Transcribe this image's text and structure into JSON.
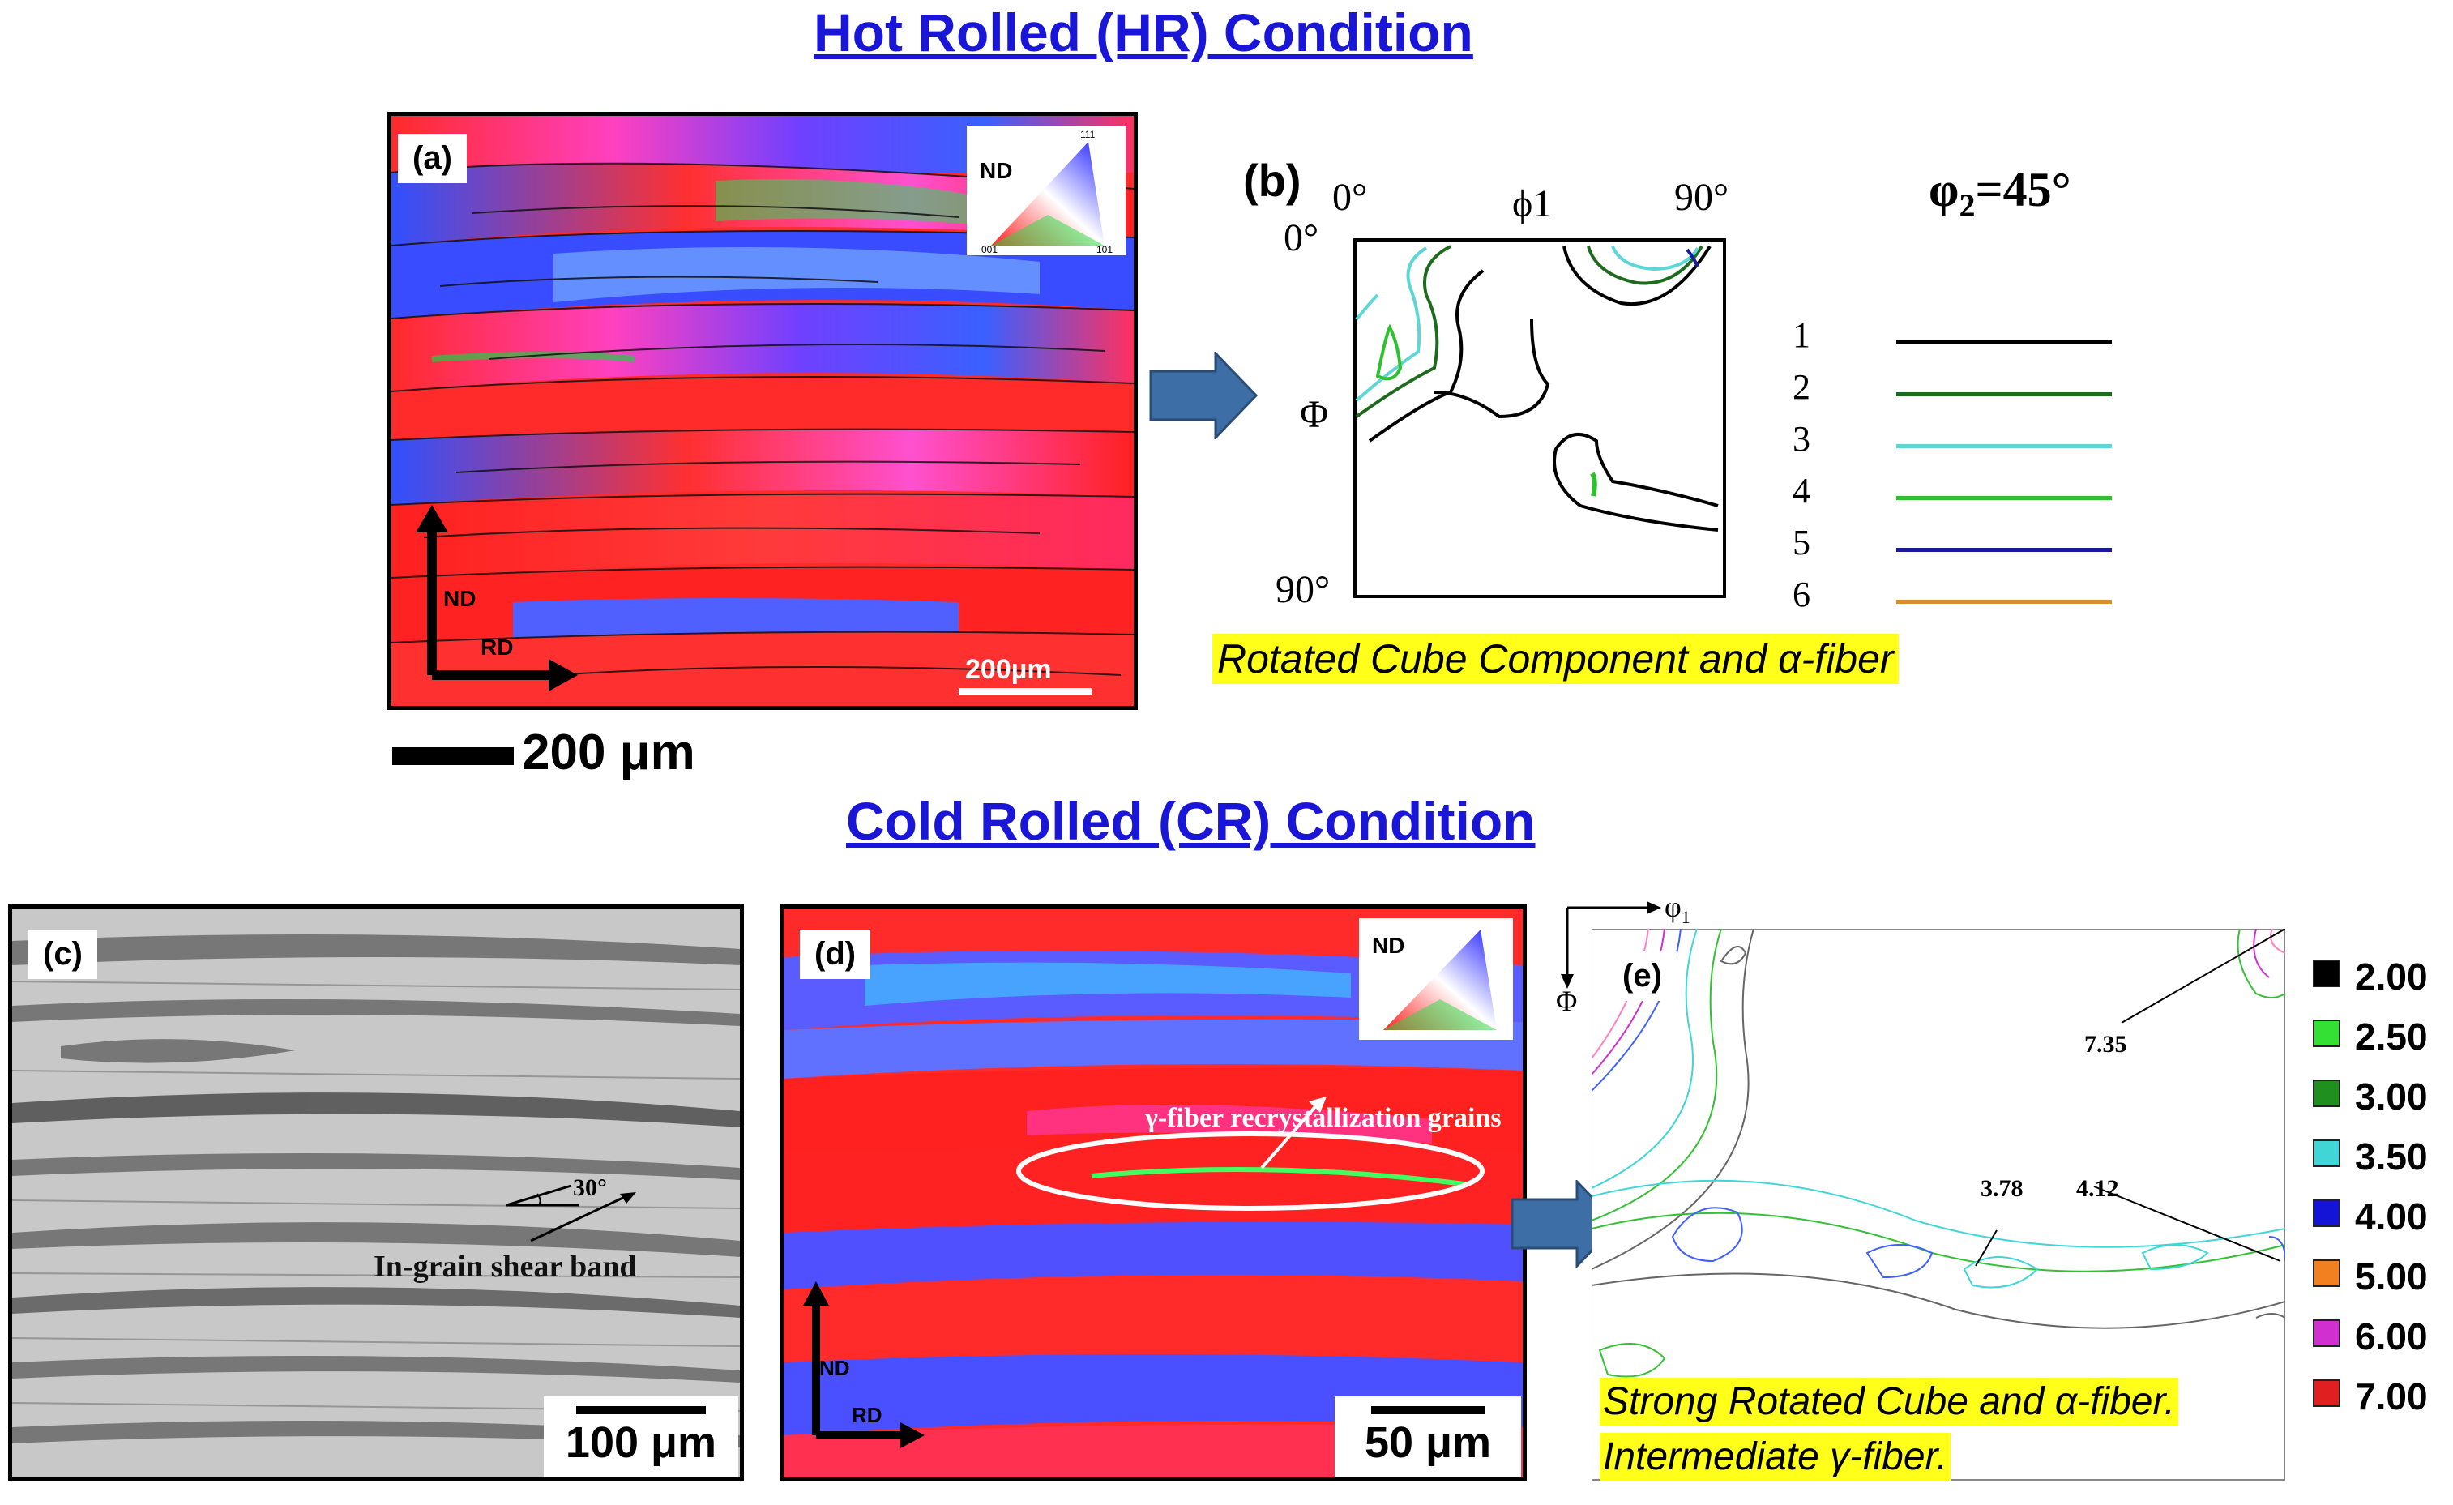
{
  "hr_title": "Hot Rolled (HR) Condition",
  "cr_title": "Cold Rolled (CR) Condition",
  "panel_a": {
    "label": "(a)",
    "ipf_label": "ND",
    "ipf_corners": [
      "111",
      "001",
      "101"
    ],
    "axis_nd": "ND",
    "axis_rd": "RD",
    "scale_inside": "200µm",
    "scale_below": "200 μm"
  },
  "panel_b": {
    "label": "(b)",
    "x_start": "0°",
    "x_mid": "ϕ1",
    "x_end": "90°",
    "y_start": "0°",
    "y_mid": "Φ",
    "y_end": "90°",
    "title": "φ",
    "title_sub": "2",
    "title_rest": "=45°",
    "legend": [
      {
        "num": "1",
        "color": "#000000"
      },
      {
        "num": "2",
        "color": "#1e6b1e"
      },
      {
        "num": "3",
        "color": "#5fd6d6"
      },
      {
        "num": "4",
        "color": "#2fc02f"
      },
      {
        "num": "5",
        "color": "#1a1a9a"
      },
      {
        "num": "6",
        "color": "#d9902c"
      }
    ],
    "caption": "Rotated Cube Component and α-fiber"
  },
  "panel_c": {
    "label": "(c)",
    "angle": "30°",
    "annotation": "In-grain shear band",
    "scale": "100 μm"
  },
  "panel_d": {
    "label": "(d)",
    "ipf_label": "ND",
    "annotation": "γ-fiber recrystallization grains",
    "axis_nd": "ND",
    "axis_rd": "RD",
    "scale": "50 μm"
  },
  "panel_e": {
    "label": "(e)",
    "axis_phi1": "φ",
    "axis_phi1_sub": "1",
    "axis_Phi": "Φ",
    "values": [
      "7.35",
      "3.78",
      "4.12"
    ],
    "caption_line1": "Strong Rotated Cube and α-fiber.",
    "caption_line2": "Intermediate γ-fiber.",
    "colorbar": [
      {
        "value": "2.00",
        "color": "#000000"
      },
      {
        "value": "2.50",
        "color": "#33e033"
      },
      {
        "value": "3.00",
        "color": "#1f8f1f"
      },
      {
        "value": "3.50",
        "color": "#40d6d6"
      },
      {
        "value": "4.00",
        "color": "#1414d6"
      },
      {
        "value": "5.00",
        "color": "#f08020"
      },
      {
        "value": "6.00",
        "color": "#d030d0"
      },
      {
        "value": "7.00",
        "color": "#e02020"
      }
    ]
  }
}
